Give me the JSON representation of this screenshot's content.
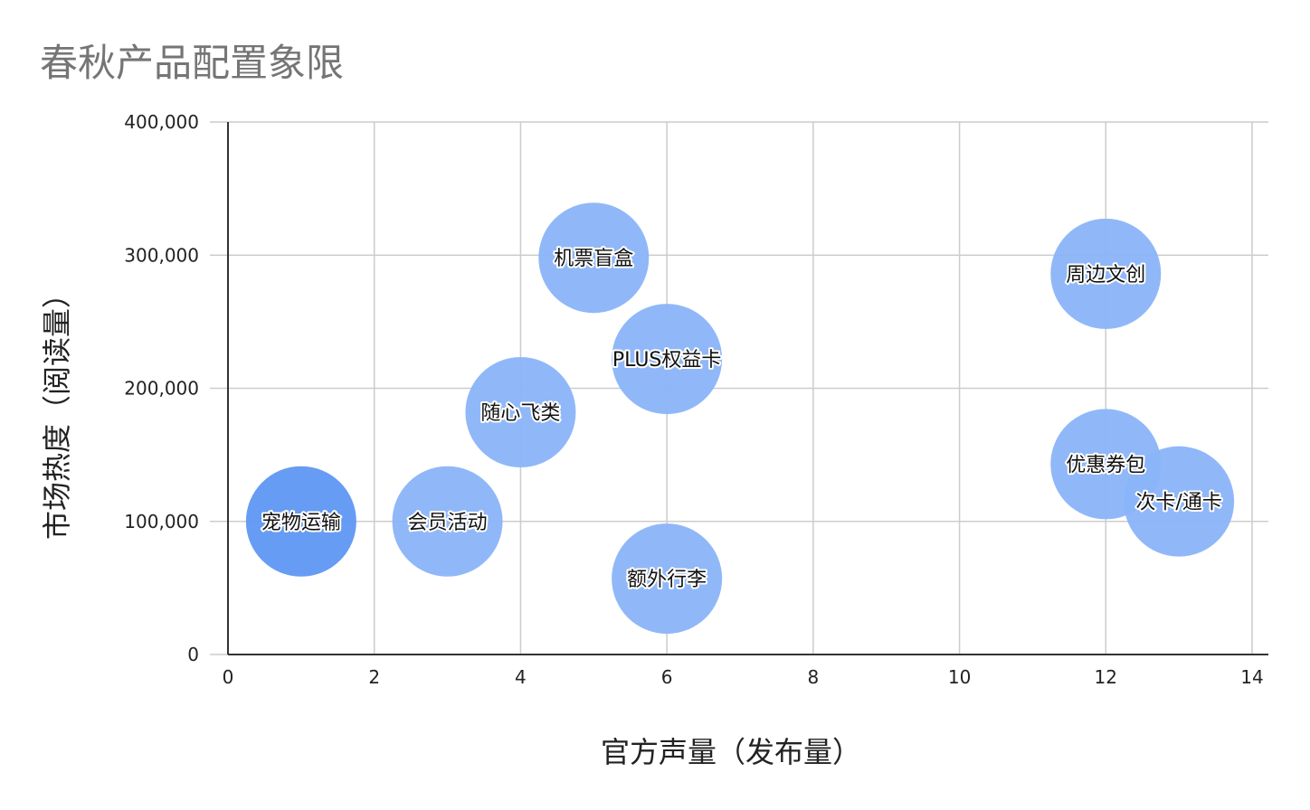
{
  "chart_data": {
    "type": "scatter",
    "title": "春秋产品配置象限",
    "xlabel": "官方声量（发布量）",
    "ylabel": "市场热度（阅读量）",
    "xlim": [
      0,
      14
    ],
    "ylim": [
      0,
      400000
    ],
    "x_ticks": [
      0,
      2,
      4,
      6,
      8,
      10,
      12,
      14
    ],
    "y_ticks": [
      0,
      100000,
      200000,
      300000,
      400000
    ],
    "y_tick_labels": [
      "0",
      "100,000",
      "200,000",
      "300,000",
      "400,000"
    ],
    "grid": true,
    "legend": "none",
    "points": [
      {
        "label": "宠物运输",
        "x": 1,
        "y": 100000,
        "color": "#5f97f3"
      },
      {
        "label": "会员活动",
        "x": 3,
        "y": 100000,
        "color": "#8ab4f8"
      },
      {
        "label": "随心飞类",
        "x": 4,
        "y": 182000,
        "color": "#8ab4f8"
      },
      {
        "label": "机票盲盒",
        "x": 5,
        "y": 298000,
        "color": "#8ab4f8"
      },
      {
        "label": "PLUS权益卡",
        "x": 6,
        "y": 222000,
        "color": "#8ab4f8"
      },
      {
        "label": "额外行李",
        "x": 6,
        "y": 57000,
        "color": "#8ab4f8"
      },
      {
        "label": "周边文创",
        "x": 12,
        "y": 286000,
        "color": "#8ab4f8"
      },
      {
        "label": "优惠券包",
        "x": 12,
        "y": 143000,
        "color": "#8ab4f8"
      },
      {
        "label": "次卡/通卡",
        "x": 13,
        "y": 115000,
        "color": "#8ab4f8"
      }
    ]
  }
}
